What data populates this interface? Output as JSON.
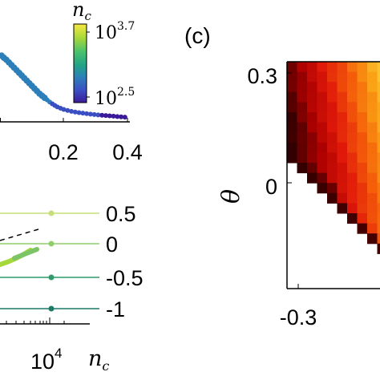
{
  "chart_data": [
    {
      "panel": "",
      "type": "scatter",
      "xticks": [
        "0.2",
        "0.4"
      ],
      "xlim": [
        0.0,
        0.4
      ],
      "colorbar": {
        "label": "n_c",
        "label_base": "n",
        "label_sub": "c",
        "tick_top": {
          "base": "10",
          "exp": "3.7"
        },
        "tick_bottom": {
          "base": "10",
          "exp": "2.5"
        },
        "colors": [
          "#f7e840",
          "#a6d83b",
          "#4cc26c",
          "#21a585",
          "#2c7fb8",
          "#3b4fc4",
          "#3b1a99"
        ]
      },
      "points": [
        {
          "x": 0.005,
          "y": 0.62
        },
        {
          "x": 0.012,
          "y": 0.6
        },
        {
          "x": 0.02,
          "y": 0.58
        },
        {
          "x": 0.028,
          "y": 0.555
        },
        {
          "x": 0.036,
          "y": 0.53
        },
        {
          "x": 0.044,
          "y": 0.505
        },
        {
          "x": 0.052,
          "y": 0.48
        },
        {
          "x": 0.06,
          "y": 0.455
        },
        {
          "x": 0.068,
          "y": 0.43
        },
        {
          "x": 0.076,
          "y": 0.405
        },
        {
          "x": 0.084,
          "y": 0.38
        },
        {
          "x": 0.092,
          "y": 0.355
        },
        {
          "x": 0.1,
          "y": 0.33
        },
        {
          "x": 0.108,
          "y": 0.305
        },
        {
          "x": 0.116,
          "y": 0.28
        },
        {
          "x": 0.124,
          "y": 0.255
        },
        {
          "x": 0.132,
          "y": 0.235
        },
        {
          "x": 0.14,
          "y": 0.215
        },
        {
          "x": 0.148,
          "y": 0.195
        },
        {
          "x": 0.156,
          "y": 0.175
        },
        {
          "x": 0.164,
          "y": 0.158
        },
        {
          "x": 0.172,
          "y": 0.142
        },
        {
          "x": 0.18,
          "y": 0.128
        },
        {
          "x": 0.19,
          "y": 0.115
        },
        {
          "x": 0.2,
          "y": 0.104
        },
        {
          "x": 0.212,
          "y": 0.094
        },
        {
          "x": 0.224,
          "y": 0.086
        },
        {
          "x": 0.236,
          "y": 0.079
        },
        {
          "x": 0.248,
          "y": 0.073
        },
        {
          "x": 0.26,
          "y": 0.068
        },
        {
          "x": 0.272,
          "y": 0.063
        },
        {
          "x": 0.284,
          "y": 0.059
        },
        {
          "x": 0.296,
          "y": 0.055
        },
        {
          "x": 0.308,
          "y": 0.051
        },
        {
          "x": 0.32,
          "y": 0.048
        },
        {
          "x": 0.332,
          "y": 0.045
        },
        {
          "x": 0.344,
          "y": 0.042
        },
        {
          "x": 0.356,
          "y": 0.039
        },
        {
          "x": 0.368,
          "y": 0.036
        },
        {
          "x": 0.38,
          "y": 0.033
        },
        {
          "x": 0.392,
          "y": 0.03
        }
      ]
    },
    {
      "panel": "",
      "type": "line",
      "xlabel_base": "n",
      "xlabel_sub": "c",
      "xticks": [
        {
          "base": "10",
          "exp": "4"
        }
      ],
      "legend": [
        {
          "label": "0.5",
          "color": "#c5e07a"
        },
        {
          "label": "0",
          "color": "#8fcf6a"
        },
        {
          "label": "-0.5",
          "color": "#2f9a6a"
        },
        {
          "label": "-1",
          "color": "#1d7a66"
        }
      ]
    },
    {
      "panel": "(c)",
      "type": "heatmap",
      "ylabel": "θ",
      "yticks": [
        "0.3",
        "0"
      ],
      "xticks": [
        "-0.3"
      ],
      "xlim": [
        -0.32,
        0.1
      ],
      "ylim": [
        -0.12,
        0.32
      ]
    }
  ]
}
